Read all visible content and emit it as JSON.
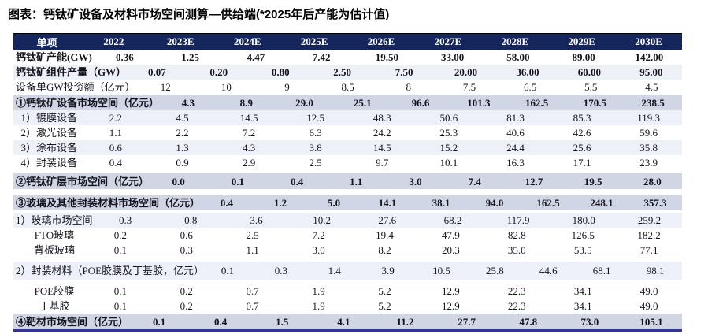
{
  "page_title": "图表：钙钛矿设备及材料市场空间测算—供给端(*2025年后产能为估计值)",
  "colors": {
    "header_bg": "#15265c",
    "header_text": "#ffffff",
    "band": "#d0d6e4",
    "faint": "#edf0f7",
    "text": "#14141e",
    "title_text": "#000000",
    "rule_top": "#000000",
    "rule_bottom": "#32388f"
  },
  "chart_data": {
    "type": "table",
    "title": "钙钛矿设备及材料市场空间测算—供给端",
    "note": "*2025年后产能为估计值",
    "columns": [
      "单项",
      "2022",
      "2023E",
      "2024E",
      "2025E",
      "2026E",
      "2027E",
      "2028E",
      "2029E",
      "2030E"
    ],
    "rows": [
      {
        "label": "钙钛矿产能(GW)",
        "values": [
          "0.36",
          "1.25",
          "4.47",
          "7.42",
          "19.50",
          "33.00",
          "58.00",
          "89.00",
          "142.00"
        ],
        "bold": true,
        "bg": null
      },
      {
        "label": "钙钛矿组件产量（GW）",
        "values": [
          "0.07",
          "0.20",
          "0.80",
          "2.50",
          "7.50",
          "20.00",
          "36.00",
          "60.00",
          "95.00"
        ],
        "bold": true,
        "bg": "faint"
      },
      {
        "label": "设备单GW投资额（亿元）",
        "values": [
          "12",
          "10",
          "9",
          "8.5",
          "8",
          "7.5",
          "6.5",
          "5.5",
          "4.5"
        ],
        "bold": false,
        "bg": null
      },
      {
        "label": "①钙钛矿设备市场空间（亿元）",
        "values": [
          "4.3",
          "8.9",
          "29.0",
          "25.1",
          "96.6",
          "101.3",
          "162.5",
          "170.5",
          "238.5"
        ],
        "bold": true,
        "bg": "band"
      },
      {
        "label": "1）镀膜设备",
        "values": [
          "2.2",
          "4.5",
          "14.5",
          "12.5",
          "48.3",
          "50.6",
          "81.3",
          "85.3",
          "119.3"
        ],
        "bold": false,
        "bg": "faint"
      },
      {
        "label": "2）激光设备",
        "values": [
          "1.1",
          "2.2",
          "7.2",
          "6.3",
          "24.2",
          "25.3",
          "40.6",
          "42.6",
          "59.6"
        ],
        "bold": false,
        "bg": null
      },
      {
        "label": "3）涂布设备",
        "values": [
          "0.6",
          "1.3",
          "4.3",
          "3.8",
          "14.5",
          "15.2",
          "24.4",
          "25.6",
          "35.8"
        ],
        "bold": false,
        "bg": "faint"
      },
      {
        "label": "4）封装设备",
        "values": [
          "0.4",
          "0.9",
          "2.9",
          "2.5",
          "9.7",
          "10.1",
          "16.3",
          "17.1",
          "23.9"
        ],
        "bold": false,
        "bg": null
      },
      {
        "label": "②钙钛矿层市场空间（亿元）",
        "values": [
          "0.0",
          "0.1",
          "0.4",
          "1.1",
          "3.0",
          "7.4",
          "12.7",
          "19.5",
          "28.0"
        ],
        "bold": true,
        "bg": "band",
        "gap": true
      },
      {
        "label": "③玻璃及其他封装材料市场空间（亿元）",
        "values": [
          "0.4",
          "1.2",
          "5.0",
          "14.1",
          "38.1",
          "94.0",
          "162.5",
          "248.1",
          "357.3"
        ],
        "bold": true,
        "bg": "band",
        "gap": true
      },
      {
        "label": "1）玻璃市场空间",
        "values": [
          "0.3",
          "0.8",
          "3.6",
          "10.2",
          "27.6",
          "68.2",
          "117.9",
          "180.0",
          "259.2"
        ],
        "bold": false,
        "bg": "faint"
      },
      {
        "label": "FTO玻璃",
        "values": [
          "0.2",
          "0.6",
          "2.5",
          "7.2",
          "19.4",
          "47.9",
          "82.8",
          "126.5",
          "182.2"
        ],
        "bold": false,
        "bg": null,
        "indent": true
      },
      {
        "label": "背板玻璃",
        "values": [
          "0.1",
          "0.3",
          "1.1",
          "3.0",
          "8.2",
          "20.3",
          "35.0",
          "53.5",
          "77.1"
        ],
        "bold": false,
        "bg": null,
        "indent": true
      },
      {
        "label": "2）封装材料（POE胶膜及丁基胶，亿元）",
        "values": [
          "0.1",
          "0.3",
          "1.4",
          "3.9",
          "10.5",
          "25.8",
          "44.6",
          "68.1",
          "98.1"
        ],
        "bold": false,
        "bg": "faint",
        "gap": true
      },
      {
        "label": "POE胶膜",
        "values": [
          "0.1",
          "0.2",
          "0.7",
          "1.9",
          "5.2",
          "12.9",
          "22.3",
          "34.1",
          "49.0"
        ],
        "bold": false,
        "bg": null,
        "indent": true
      },
      {
        "label": "丁基胶",
        "values": [
          "0.1",
          "0.2",
          "0.7",
          "1.9",
          "5.2",
          "12.9",
          "22.3",
          "34.1",
          "49.0"
        ],
        "bold": false,
        "bg": null,
        "indent": true
      },
      {
        "label": "④靶材市场空间（亿元）",
        "values": [
          "0.1",
          "0.4",
          "1.5",
          "4.1",
          "11.2",
          "27.7",
          "47.8",
          "73.0",
          "105.1"
        ],
        "bold": true,
        "bg": "band"
      }
    ]
  }
}
